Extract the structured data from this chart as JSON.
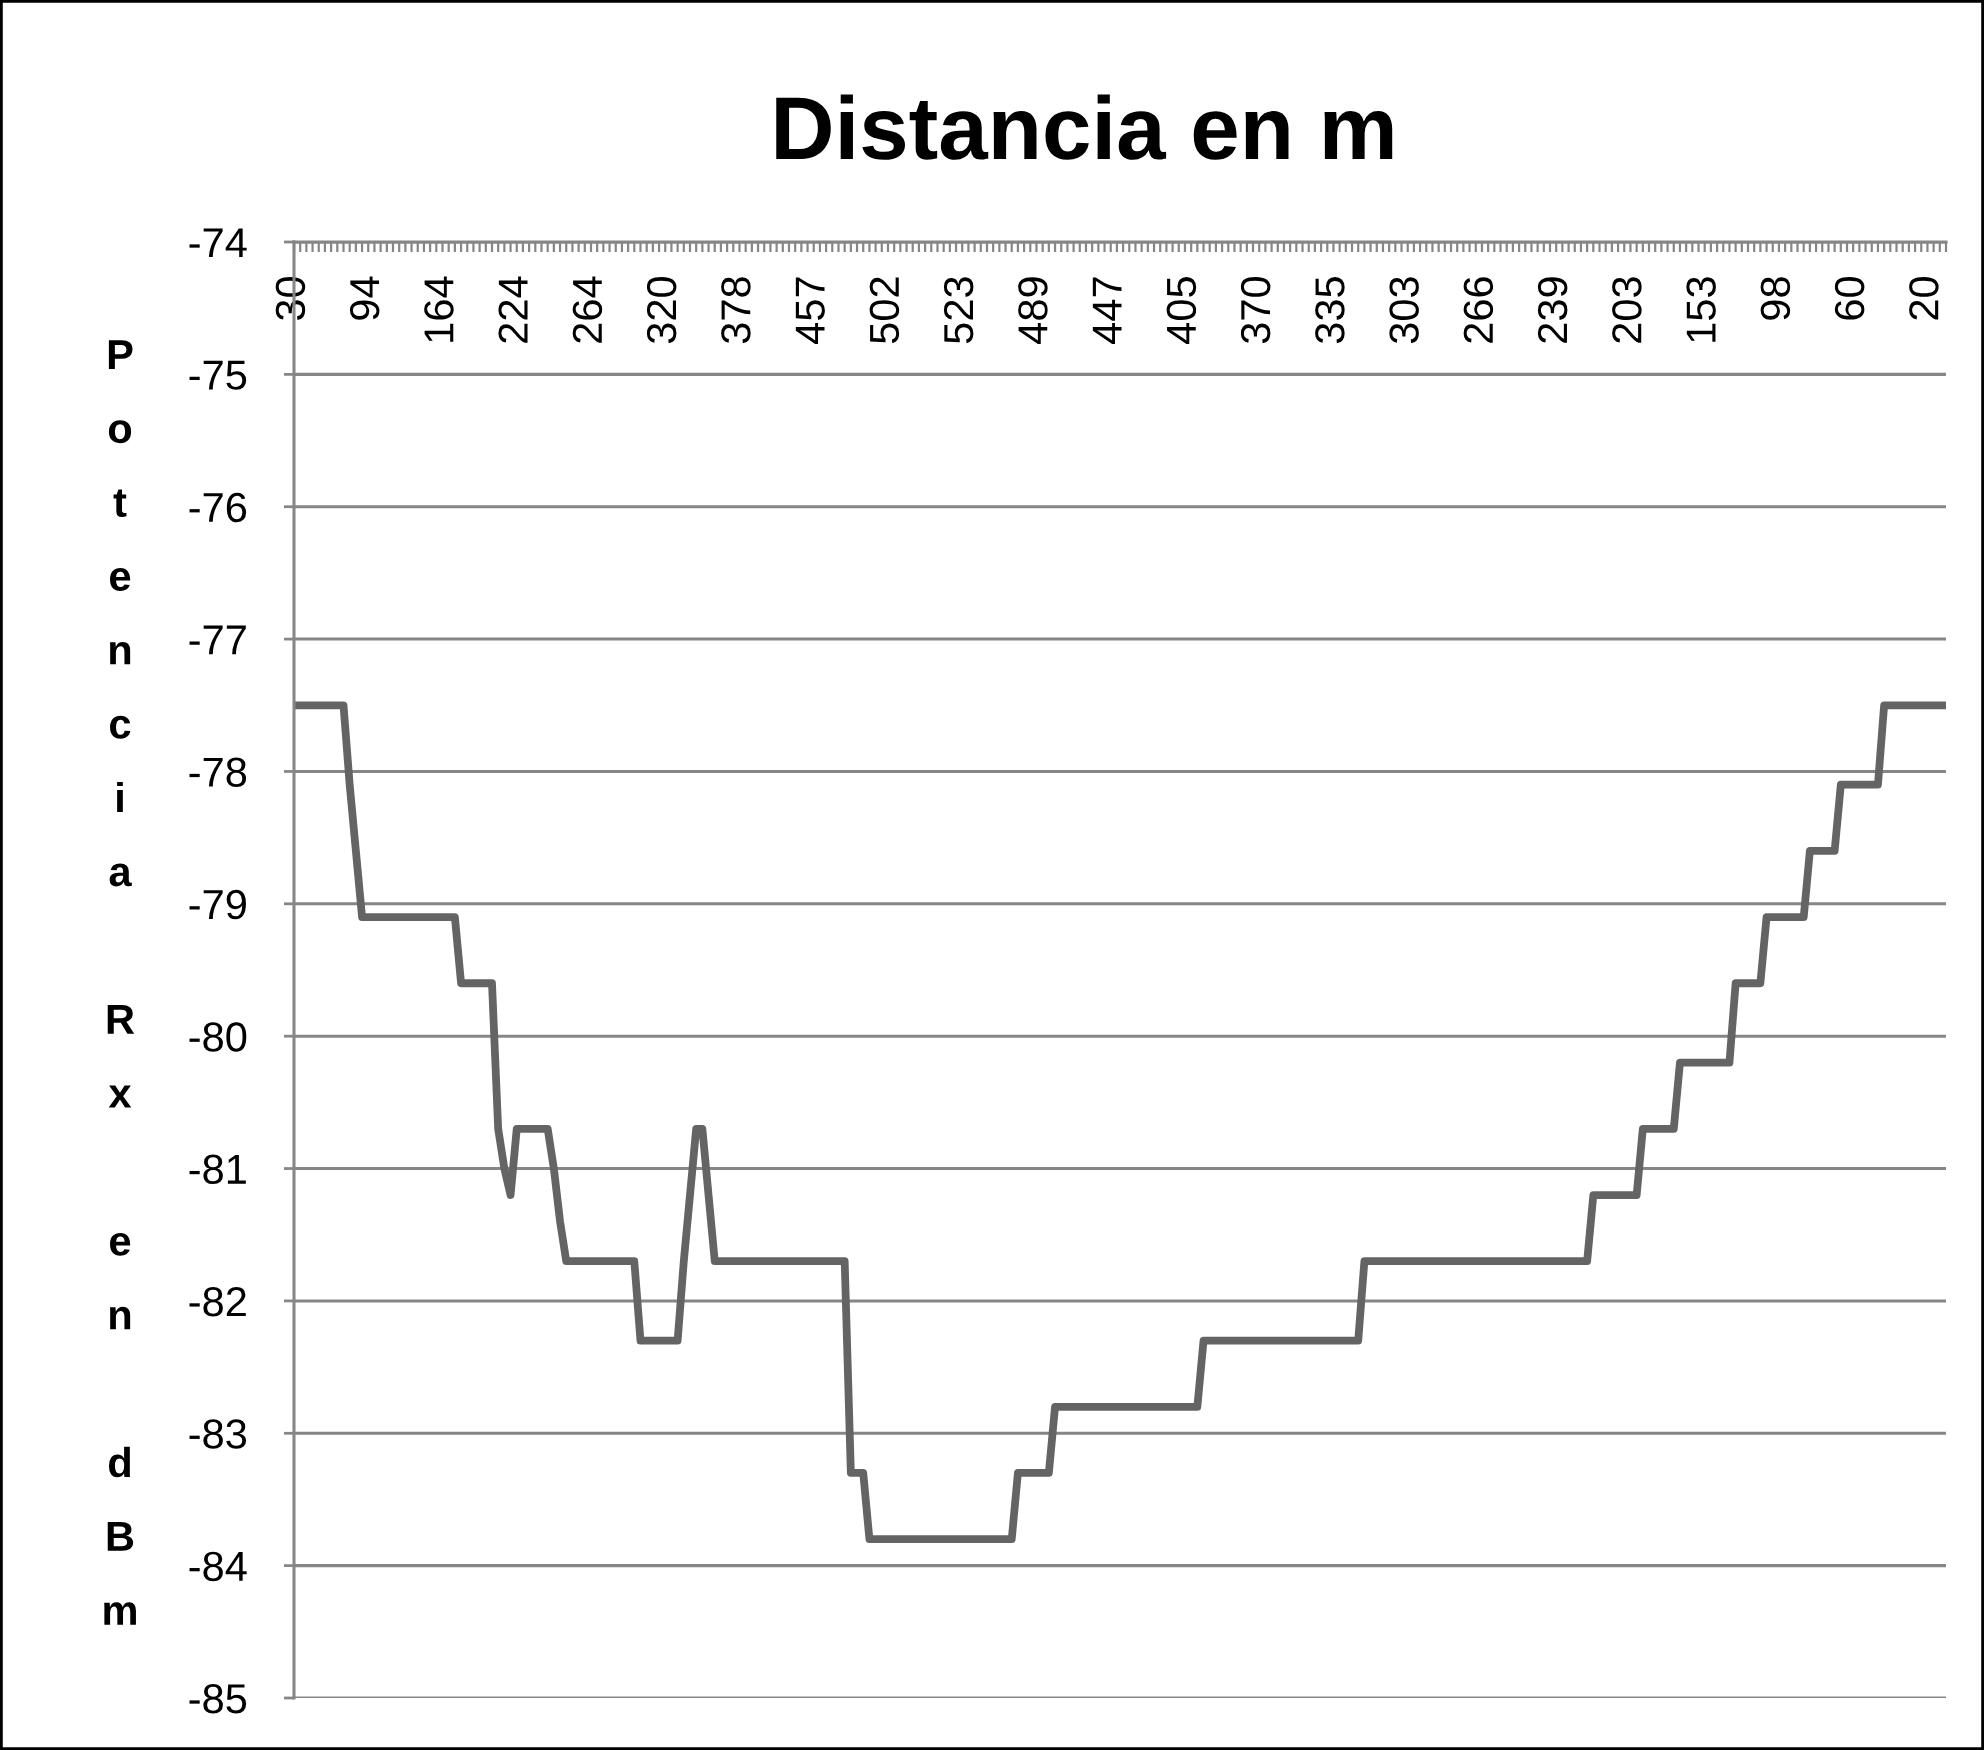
{
  "chart_data": {
    "type": "line",
    "title": "Distancia en m",
    "ylabel": "Potencia Rx en dBm",
    "categories": [
      "30",
      null,
      null,
      null,
      null,
      null,
      null,
      null,
      null,
      null,
      null,
      null,
      "94",
      null,
      null,
      null,
      null,
      null,
      null,
      null,
      null,
      null,
      null,
      null,
      "164",
      null,
      null,
      null,
      null,
      null,
      null,
      null,
      null,
      null,
      null,
      null,
      "224",
      null,
      null,
      null,
      null,
      null,
      null,
      null,
      null,
      null,
      null,
      null,
      "264",
      null,
      null,
      null,
      null,
      null,
      null,
      null,
      null,
      null,
      null,
      null,
      "320",
      null,
      null,
      null,
      null,
      null,
      null,
      null,
      null,
      null,
      null,
      null,
      "378",
      null,
      null,
      null,
      null,
      null,
      null,
      null,
      null,
      null,
      null,
      null,
      "457",
      null,
      null,
      null,
      null,
      null,
      null,
      null,
      null,
      null,
      null,
      null,
      "502",
      null,
      null,
      null,
      null,
      null,
      null,
      null,
      null,
      null,
      null,
      null,
      "523",
      null,
      null,
      null,
      null,
      null,
      null,
      null,
      null,
      null,
      null,
      null,
      "489",
      null,
      null,
      null,
      null,
      null,
      null,
      null,
      null,
      null,
      null,
      null,
      "447",
      null,
      null,
      null,
      null,
      null,
      null,
      null,
      null,
      null,
      null,
      null,
      "405",
      null,
      null,
      null,
      null,
      null,
      null,
      null,
      null,
      null,
      null,
      null,
      "370",
      null,
      null,
      null,
      null,
      null,
      null,
      null,
      null,
      null,
      null,
      null,
      "335",
      null,
      null,
      null,
      null,
      null,
      null,
      null,
      null,
      null,
      null,
      null,
      "303",
      null,
      null,
      null,
      null,
      null,
      null,
      null,
      null,
      null,
      null,
      null,
      "266",
      null,
      null,
      null,
      null,
      null,
      null,
      null,
      null,
      null,
      null,
      null,
      "239",
      null,
      null,
      null,
      null,
      null,
      null,
      null,
      null,
      null,
      null,
      null,
      "203",
      null,
      null,
      null,
      null,
      null,
      null,
      null,
      null,
      null,
      null,
      null,
      "153",
      null,
      null,
      null,
      null,
      null,
      null,
      null,
      null,
      null,
      null,
      null,
      "98",
      null,
      null,
      null,
      null,
      null,
      null,
      null,
      null,
      null,
      null,
      null,
      "60",
      null,
      null,
      null,
      null,
      null,
      null,
      null,
      null,
      null,
      null,
      null,
      "20",
      null,
      null,
      null
    ],
    "series": [
      {
        "color": "#646464",
        "values": [
          -77.5,
          -77.5,
          -77.5,
          -77.5,
          -77.5,
          -77.5,
          -77.5,
          -77.5,
          -77.5,
          -78.1,
          -78.6,
          -79.1,
          -79.1,
          -79.1,
          -79.1,
          -79.1,
          -79.1,
          -79.1,
          -79.1,
          -79.1,
          -79.1,
          -79.1,
          -79.1,
          -79.1,
          -79.1,
          -79.1,
          -79.1,
          -79.6,
          -79.6,
          -79.6,
          -79.6,
          -79.6,
          -79.6,
          -80.7,
          -81.0,
          -81.2,
          -80.7,
          -80.7,
          -80.7,
          -80.7,
          -80.7,
          -80.7,
          -81.0,
          -81.4,
          -81.7,
          -81.7,
          -81.7,
          -81.7,
          -81.7,
          -81.7,
          -81.7,
          -81.7,
          -81.7,
          -81.7,
          -81.7,
          -81.7,
          -82.3,
          -82.3,
          -82.3,
          -82.3,
          -82.3,
          -82.3,
          -82.3,
          -81.7,
          -81.2,
          -80.7,
          -80.7,
          -81.2,
          -81.7,
          -81.7,
          -81.7,
          -81.7,
          -81.7,
          -81.7,
          -81.7,
          -81.7,
          -81.7,
          -81.7,
          -81.7,
          -81.7,
          -81.7,
          -81.7,
          -81.7,
          -81.7,
          -81.7,
          -81.7,
          -81.7,
          -81.7,
          -81.7,
          -81.7,
          -83.3,
          -83.3,
          -83.3,
          -83.8,
          -83.8,
          -83.8,
          -83.8,
          -83.8,
          -83.8,
          -83.8,
          -83.8,
          -83.8,
          -83.8,
          -83.8,
          -83.8,
          -83.8,
          -83.8,
          -83.8,
          -83.8,
          -83.8,
          -83.8,
          -83.8,
          -83.8,
          -83.8,
          -83.8,
          -83.8,
          -83.8,
          -83.3,
          -83.3,
          -83.3,
          -83.3,
          -83.3,
          -83.3,
          -82.8,
          -82.8,
          -82.8,
          -82.8,
          -82.8,
          -82.8,
          -82.8,
          -82.8,
          -82.8,
          -82.8,
          -82.8,
          -82.8,
          -82.8,
          -82.8,
          -82.8,
          -82.8,
          -82.8,
          -82.8,
          -82.8,
          -82.8,
          -82.8,
          -82.8,
          -82.8,
          -82.8,
          -82.3,
          -82.3,
          -82.3,
          -82.3,
          -82.3,
          -82.3,
          -82.3,
          -82.3,
          -82.3,
          -82.3,
          -82.3,
          -82.3,
          -82.3,
          -82.3,
          -82.3,
          -82.3,
          -82.3,
          -82.3,
          -82.3,
          -82.3,
          -82.3,
          -82.3,
          -82.3,
          -82.3,
          -82.3,
          -82.3,
          -81.7,
          -81.7,
          -81.7,
          -81.7,
          -81.7,
          -81.7,
          -81.7,
          -81.7,
          -81.7,
          -81.7,
          -81.7,
          -81.7,
          -81.7,
          -81.7,
          -81.7,
          -81.7,
          -81.7,
          -81.7,
          -81.7,
          -81.7,
          -81.7,
          -81.7,
          -81.7,
          -81.7,
          -81.7,
          -81.7,
          -81.7,
          -81.7,
          -81.7,
          -81.7,
          -81.7,
          -81.7,
          -81.7,
          -81.7,
          -81.7,
          -81.7,
          -81.7,
          -81.2,
          -81.2,
          -81.2,
          -81.2,
          -81.2,
          -81.2,
          -81.2,
          -81.2,
          -80.7,
          -80.7,
          -80.7,
          -80.7,
          -80.7,
          -80.7,
          -80.2,
          -80.2,
          -80.2,
          -80.2,
          -80.2,
          -80.2,
          -80.2,
          -80.2,
          -80.2,
          -79.6,
          -79.6,
          -79.6,
          -79.6,
          -79.6,
          -79.1,
          -79.1,
          -79.1,
          -79.1,
          -79.1,
          -79.1,
          -79.1,
          -78.6,
          -78.6,
          -78.6,
          -78.6,
          -78.6,
          -78.1,
          -78.1,
          -78.1,
          -78.1,
          -78.1,
          -78.1,
          -78.1,
          -77.5,
          -77.5,
          -77.5,
          -77.5,
          -77.5,
          -77.5,
          -77.5,
          -77.5,
          -77.5,
          -77.5,
          -77.5
        ]
      }
    ],
    "ylim": [
      -85,
      -74
    ],
    "yticks": [
      -74,
      -75,
      -76,
      -77,
      -78,
      -79,
      -80,
      -81,
      -82,
      -83,
      -84,
      -85
    ],
    "grid": "y"
  }
}
